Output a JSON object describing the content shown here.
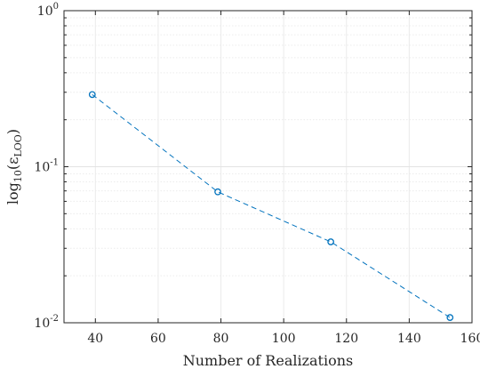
{
  "chart_data": {
    "type": "line",
    "xlabel": "Number of Realizations",
    "ylabel_main": "log",
    "ylabel_sub": "10",
    "ylabel_paren_open": "(ε",
    "ylabel_sub2": "LOO",
    "ylabel_paren_close": ")",
    "xlim": [
      30,
      160
    ],
    "ylim": [
      0.01,
      1
    ],
    "yscale": "log",
    "grid": true,
    "minor_grid": true,
    "x_ticks": [
      "40",
      "60",
      "80",
      "100",
      "120",
      "140",
      "160"
    ],
    "y_ticks": [
      {
        "base": "10",
        "exp": "-2"
      },
      {
        "base": "10",
        "exp": "-1"
      },
      {
        "base": "10",
        "exp": "0"
      }
    ],
    "series": [
      {
        "color": "#0072BD",
        "line_style": "dashed",
        "marker": "circle",
        "x": [
          39,
          79,
          115,
          153
        ],
        "y": [
          0.29,
          0.069,
          0.033,
          0.0108
        ]
      }
    ]
  }
}
